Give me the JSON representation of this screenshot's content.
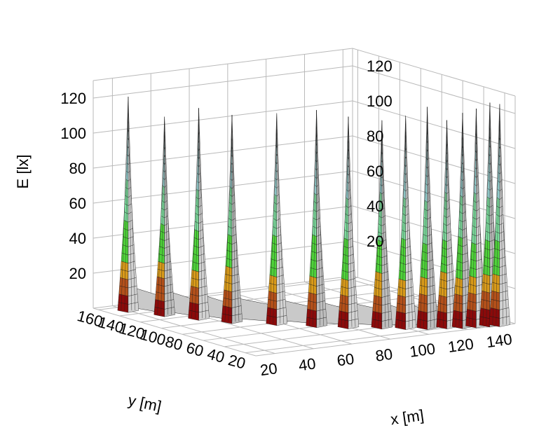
{
  "chart_data": {
    "type": "surface3d",
    "zlabel": "E [lx]",
    "xlabel": "x [m]",
    "ylabel": "y [m]",
    "x_ticks": [
      20,
      40,
      60,
      80,
      100,
      120,
      140
    ],
    "y_ticks": [
      20,
      40,
      60,
      80,
      100,
      120,
      140,
      160
    ],
    "z_ticks": [
      20,
      40,
      60,
      80,
      100,
      120
    ],
    "zlim": [
      0,
      130
    ],
    "grid": true,
    "color_bands": [
      {
        "from": 0,
        "to": 10,
        "color": "#8b0a0a"
      },
      {
        "from": 10,
        "to": 20,
        "color": "#b3501a"
      },
      {
        "from": 20,
        "to": 30,
        "color": "#d89a1a"
      },
      {
        "from": 30,
        "to": 50,
        "color": "#4fd43a"
      },
      {
        "from": 50,
        "to": 75,
        "color": "#7fe0a0"
      },
      {
        "from": 75,
        "to": 130,
        "color": "#a8ecec"
      }
    ],
    "peaks": [
      {
        "x": 20,
        "y": 150,
        "z": 122
      },
      {
        "x": 28,
        "y": 130,
        "z": 113
      },
      {
        "x": 36,
        "y": 112,
        "z": 120
      },
      {
        "x": 44,
        "y": 95,
        "z": 118
      },
      {
        "x": 58,
        "y": 78,
        "z": 120
      },
      {
        "x": 70,
        "y": 62,
        "z": 123
      },
      {
        "x": 80,
        "y": 50,
        "z": 120
      },
      {
        "x": 92,
        "y": 40,
        "z": 118
      },
      {
        "x": 100,
        "y": 32,
        "z": 121
      },
      {
        "x": 108,
        "y": 26,
        "z": 126
      },
      {
        "x": 116,
        "y": 22,
        "z": 118
      },
      {
        "x": 122,
        "y": 18,
        "z": 122
      },
      {
        "x": 128,
        "y": 16,
        "z": 124
      },
      {
        "x": 134,
        "y": 14,
        "z": 127
      },
      {
        "x": 138,
        "y": 12,
        "z": 126
      }
    ]
  }
}
